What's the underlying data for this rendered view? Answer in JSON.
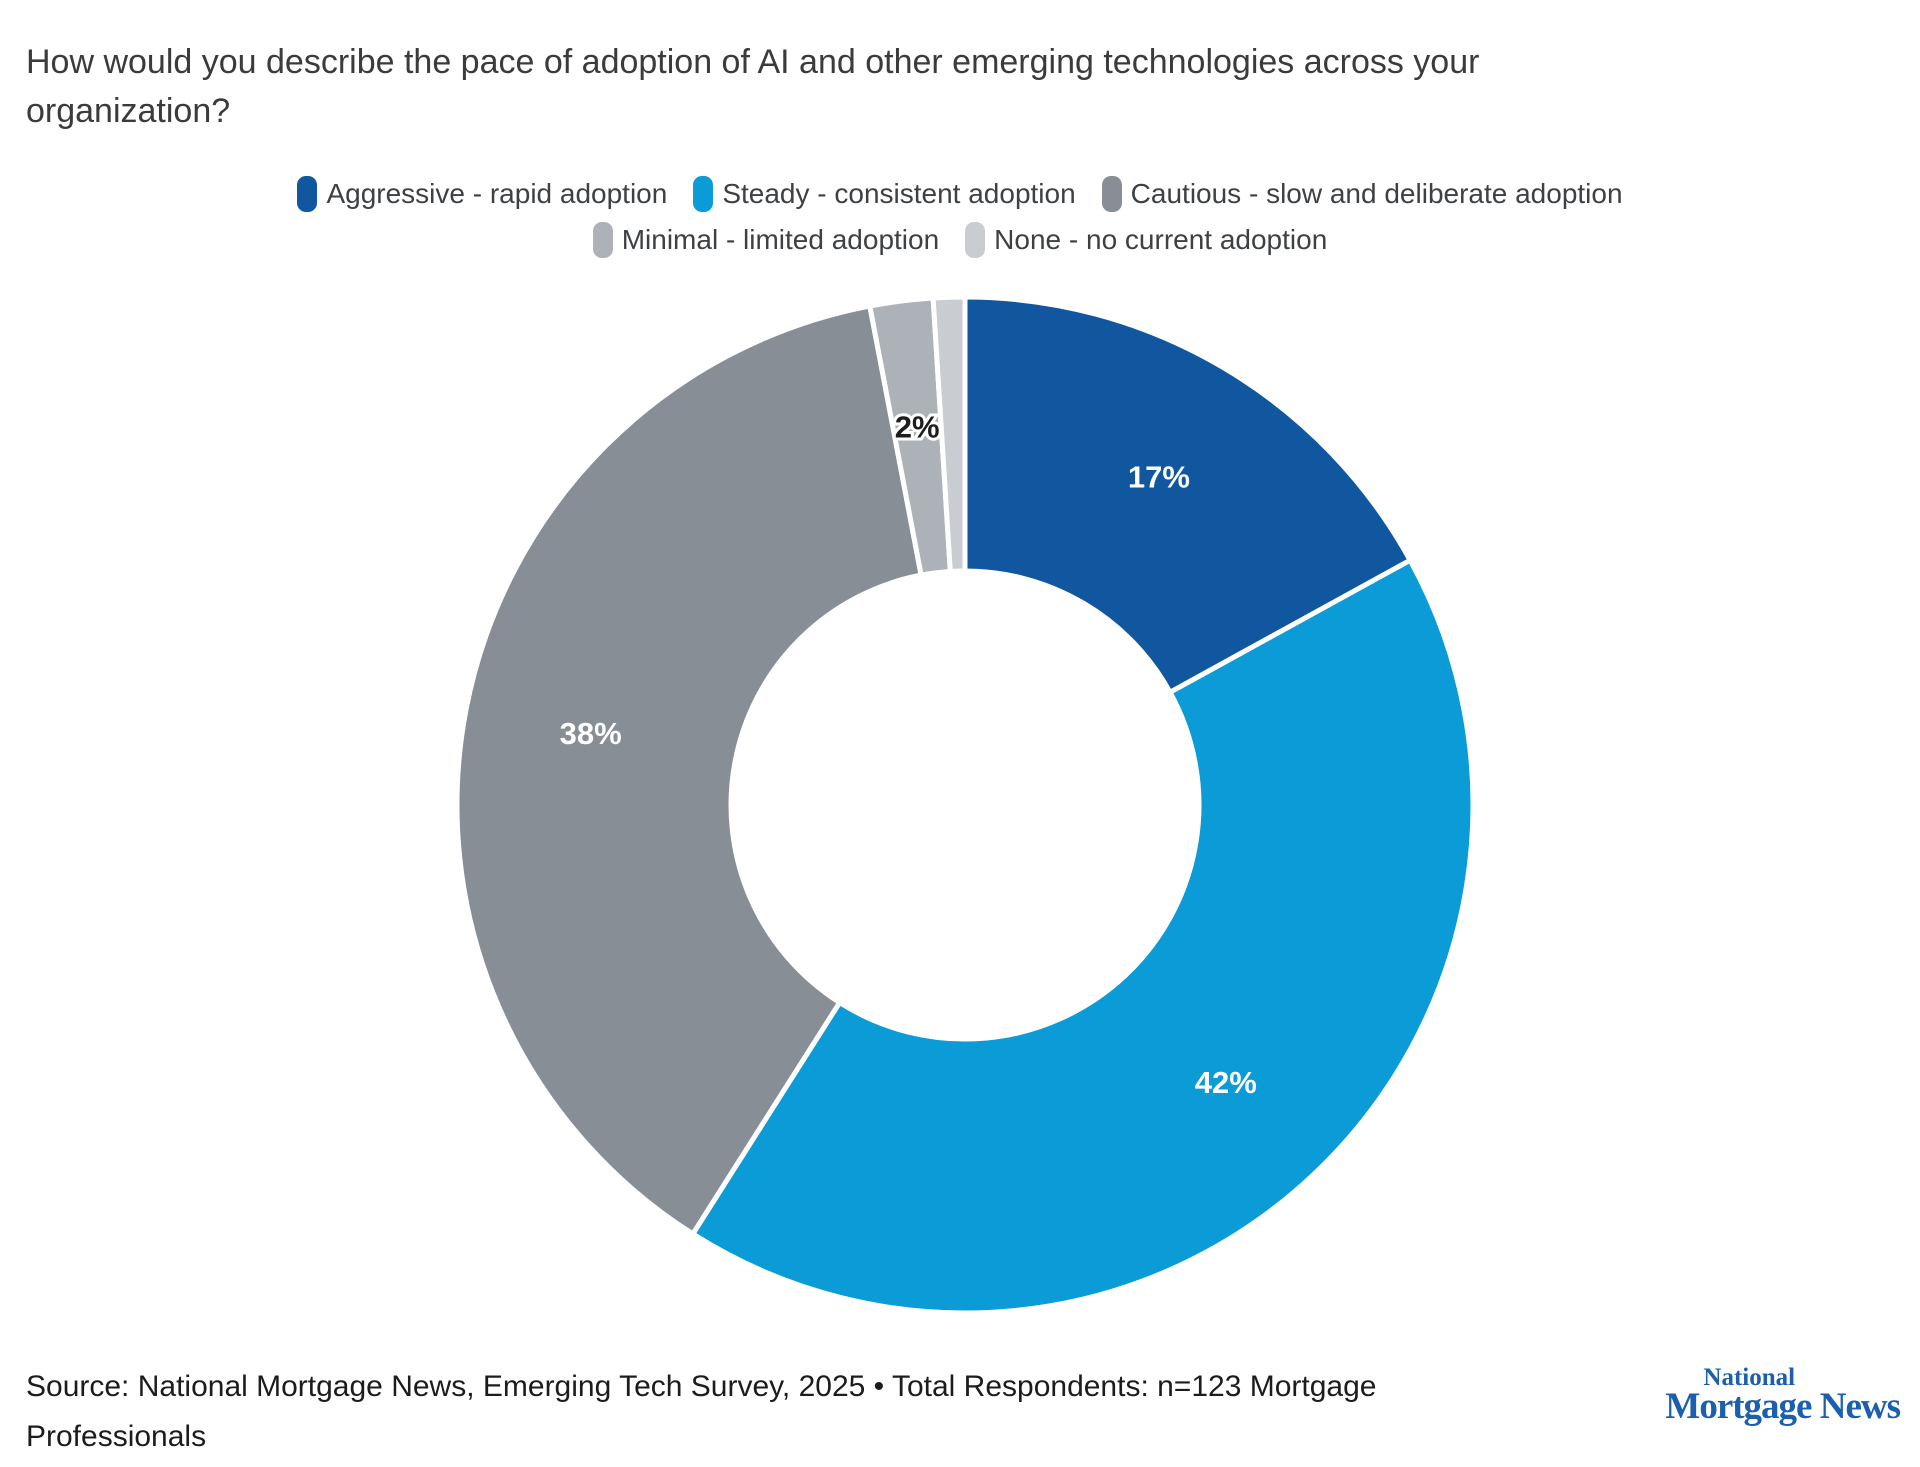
{
  "title": "How would you describe the pace of adoption of AI and other emerging technologies across your organization?",
  "chart_data": {
    "type": "pie",
    "subtype": "donut",
    "title": "How would you describe the pace of adoption of AI and other emerging technologies across your organization?",
    "units": "percent",
    "start_angle_deg": 0,
    "direction": "clockwise",
    "legend_position": "top",
    "inner_radius_ratio": 0.46,
    "series": [
      {
        "label": "Aggressive - rapid adoption",
        "value": 17,
        "color": "#10579f",
        "data_label": "17%",
        "label_color": "#ffffff"
      },
      {
        "label": "Steady - consistent adoption",
        "value": 42,
        "color": "#0b9cd8",
        "data_label": "42%",
        "label_color": "#ffffff"
      },
      {
        "label": "Cautious - slow and deliberate adoption",
        "value": 38,
        "color": "#878e95",
        "data_label": "38%",
        "label_color": "#ffffff"
      },
      {
        "label": "Minimal - limited adoption",
        "value": 2,
        "color": "#adb2b8",
        "data_label": "2%",
        "label_color": "#1d1d1d"
      },
      {
        "label": "None - no current adoption",
        "value": 1,
        "color": "#c9cdd1",
        "data_label": "",
        "label_color": "#1d1d1d"
      }
    ]
  },
  "source": {
    "text": "Source: National Mortgage News, Emerging Tech Survey, 2025 • Total Respondents: n=123 Mortgage Professionals"
  },
  "logo": {
    "line1": "National",
    "line2": "Mortgage News",
    "color": "#1c5fad"
  }
}
